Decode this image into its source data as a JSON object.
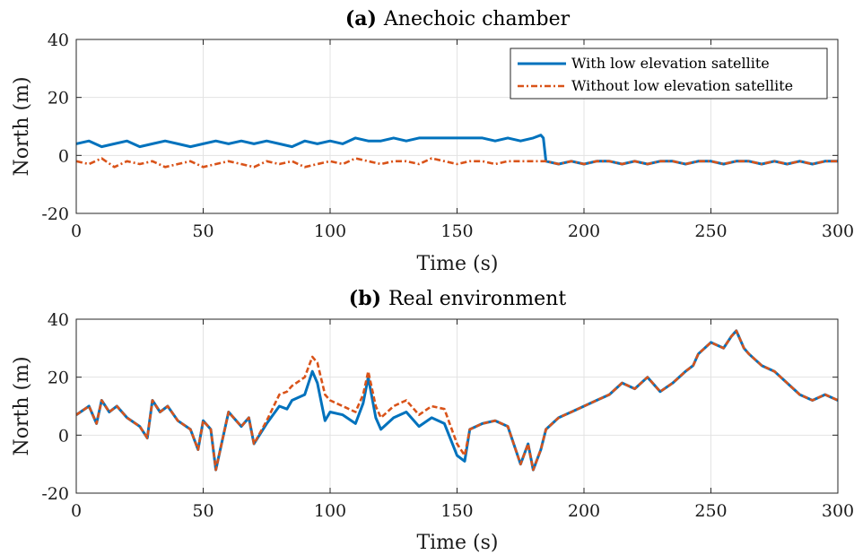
{
  "chart_data": [
    {
      "type": "line",
      "title_bold": "(a)",
      "title": "Anechoic chamber",
      "xlabel": "Time (s)",
      "ylabel": "North (m)",
      "xlim": [
        0,
        300
      ],
      "ylim": [
        -20,
        40
      ],
      "xticks": [
        "0",
        "50",
        "100",
        "150",
        "200",
        "250",
        "300"
      ],
      "yticks": [
        "-20",
        "0",
        "20",
        "40"
      ],
      "grid": true,
      "legend": "top-right",
      "series": [
        {
          "name": "With low elevation satellite",
          "color": "#0072BD",
          "style": "solid",
          "x": [
            0,
            5,
            10,
            15,
            20,
            25,
            30,
            35,
            40,
            45,
            50,
            55,
            60,
            65,
            70,
            75,
            80,
            85,
            90,
            95,
            100,
            105,
            110,
            115,
            120,
            125,
            130,
            135,
            140,
            145,
            150,
            155,
            160,
            165,
            170,
            175,
            180,
            183,
            184,
            185,
            190,
            195,
            200,
            205,
            210,
            215,
            220,
            225,
            230,
            235,
            240,
            245,
            250,
            255,
            260,
            265,
            270,
            275,
            280,
            285,
            290,
            295,
            300
          ],
          "y": [
            4,
            5,
            3,
            4,
            5,
            3,
            4,
            5,
            4,
            3,
            4,
            5,
            4,
            5,
            4,
            5,
            4,
            3,
            5,
            4,
            5,
            4,
            6,
            5,
            5,
            6,
            5,
            6,
            6,
            6,
            6,
            6,
            6,
            5,
            6,
            5,
            6,
            7,
            6,
            -2,
            -3,
            -2,
            -3,
            -2,
            -2,
            -3,
            -2,
            -3,
            -2,
            -2,
            -3,
            -2,
            -2,
            -3,
            -2,
            -2,
            -3,
            -2,
            -3,
            -2,
            -3,
            -2,
            -2
          ]
        },
        {
          "name": "Without low elevation satellite",
          "color": "#D95319",
          "style": "dashdot",
          "x": [
            0,
            5,
            10,
            15,
            20,
            25,
            30,
            35,
            40,
            45,
            50,
            55,
            60,
            65,
            70,
            75,
            80,
            85,
            90,
            95,
            100,
            105,
            110,
            115,
            120,
            125,
            130,
            135,
            140,
            145,
            150,
            155,
            160,
            165,
            170,
            175,
            180,
            185,
            190,
            195,
            200,
            205,
            210,
            215,
            220,
            225,
            230,
            235,
            240,
            245,
            250,
            255,
            260,
            265,
            270,
            275,
            280,
            285,
            290,
            295,
            300
          ],
          "y": [
            -2,
            -3,
            -1,
            -4,
            -2,
            -3,
            -2,
            -4,
            -3,
            -2,
            -4,
            -3,
            -2,
            -3,
            -4,
            -2,
            -3,
            -2,
            -4,
            -3,
            -2,
            -3,
            -1,
            -2,
            -3,
            -2,
            -2,
            -3,
            -1,
            -2,
            -3,
            -2,
            -2,
            -3,
            -2,
            -2,
            -2,
            -2,
            -3,
            -2,
            -3,
            -2,
            -2,
            -3,
            -2,
            -3,
            -2,
            -2,
            -3,
            -2,
            -2,
            -3,
            -2,
            -2,
            -3,
            -2,
            -3,
            -2,
            -3,
            -2,
            -2
          ]
        }
      ]
    },
    {
      "type": "line",
      "title_bold": "(b)",
      "title": "Real environment",
      "xlabel": "Time (s)",
      "ylabel": "North (m)",
      "xlim": [
        0,
        300
      ],
      "ylim": [
        -20,
        40
      ],
      "xticks": [
        "0",
        "50",
        "100",
        "150",
        "200",
        "250",
        "300"
      ],
      "yticks": [
        "-20",
        "0",
        "20",
        "40"
      ],
      "grid": true,
      "series": [
        {
          "name": "With low elevation satellite",
          "color": "#0072BD",
          "style": "solid",
          "x": [
            0,
            5,
            8,
            10,
            13,
            16,
            20,
            25,
            28,
            30,
            33,
            36,
            40,
            45,
            48,
            50,
            53,
            55,
            58,
            60,
            65,
            68,
            70,
            75,
            80,
            83,
            85,
            90,
            93,
            95,
            98,
            100,
            105,
            110,
            113,
            115,
            118,
            120,
            125,
            130,
            135,
            140,
            145,
            150,
            153,
            155,
            160,
            165,
            170,
            175,
            178,
            180,
            183,
            185,
            190,
            195,
            200,
            205,
            210,
            215,
            220,
            225,
            230,
            235,
            240,
            243,
            245,
            250,
            255,
            258,
            260,
            263,
            265,
            270,
            275,
            280,
            285,
            290,
            295,
            300
          ],
          "y": [
            7,
            10,
            4,
            12,
            8,
            10,
            6,
            3,
            -1,
            12,
            8,
            10,
            5,
            2,
            -5,
            5,
            2,
            -12,
            0,
            8,
            3,
            6,
            -3,
            4,
            10,
            9,
            12,
            14,
            22,
            18,
            5,
            8,
            7,
            4,
            11,
            20,
            6,
            2,
            6,
            8,
            3,
            6,
            4,
            -7,
            -9,
            2,
            4,
            5,
            3,
            -10,
            -3,
            -12,
            -5,
            2,
            6,
            8,
            10,
            12,
            14,
            18,
            16,
            20,
            15,
            18,
            22,
            24,
            28,
            32,
            30,
            34,
            36,
            30,
            28,
            24,
            22,
            18,
            14,
            12,
            14,
            12
          ]
        },
        {
          "name": "Without low elevation satellite",
          "color": "#D95319",
          "style": "dashed",
          "x": [
            0,
            5,
            8,
            10,
            13,
            16,
            20,
            25,
            28,
            30,
            33,
            36,
            40,
            45,
            48,
            50,
            53,
            55,
            58,
            60,
            65,
            68,
            70,
            75,
            80,
            83,
            85,
            90,
            93,
            95,
            98,
            100,
            105,
            110,
            113,
            115,
            118,
            120,
            125,
            130,
            135,
            140,
            145,
            150,
            153,
            155,
            160,
            165,
            170,
            175,
            178,
            180,
            183,
            185,
            190,
            195,
            200,
            205,
            210,
            215,
            220,
            225,
            230,
            235,
            240,
            243,
            245,
            250,
            255,
            258,
            260,
            263,
            265,
            270,
            275,
            280,
            285,
            290,
            295,
            300
          ],
          "y": [
            7,
            10,
            4,
            12,
            8,
            10,
            6,
            3,
            -1,
            12,
            8,
            10,
            5,
            2,
            -5,
            5,
            2,
            -12,
            0,
            8,
            3,
            6,
            -3,
            5,
            14,
            15,
            17,
            20,
            27,
            25,
            14,
            12,
            10,
            8,
            14,
            22,
            10,
            6,
            10,
            12,
            7,
            10,
            9,
            -3,
            -7,
            2,
            4,
            5,
            3,
            -10,
            -3,
            -12,
            -5,
            2,
            6,
            8,
            10,
            12,
            14,
            18,
            16,
            20,
            15,
            18,
            22,
            24,
            28,
            32,
            30,
            34,
            36,
            30,
            28,
            24,
            22,
            18,
            14,
            12,
            14,
            12
          ]
        }
      ]
    }
  ]
}
